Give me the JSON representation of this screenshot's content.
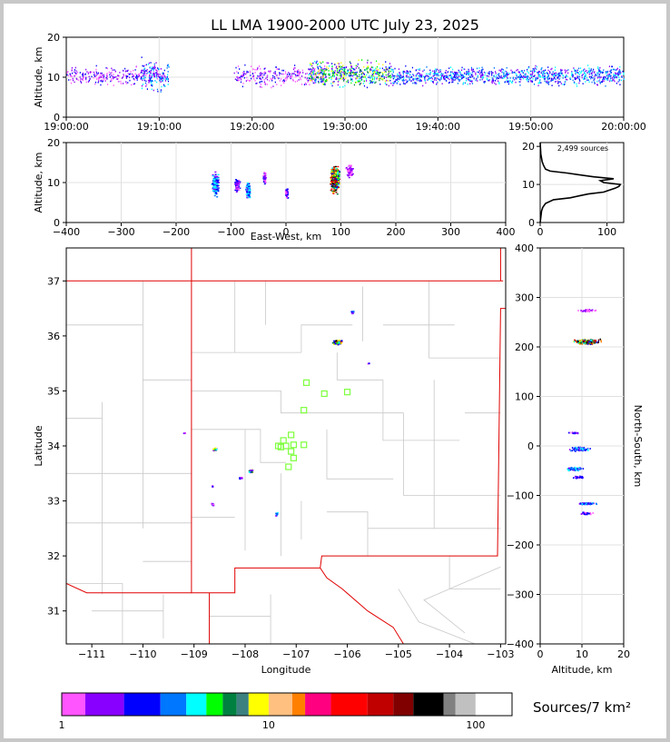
{
  "chart_data": [
    {
      "panel": "altitude-time",
      "type": "scatter",
      "title": "LL LMA 1900-2000 UTC July 23, 2025",
      "ylabel": "Altitude, km",
      "ylim": [
        0,
        20
      ],
      "yticks": [
        "0",
        "10",
        "20"
      ],
      "xticks": [
        "19:00:00",
        "19:10:00",
        "19:20:00",
        "19:30:00",
        "19:40:00",
        "19:50:00",
        "20:00:00"
      ],
      "xlim_minutes": [
        0,
        60
      ],
      "clusters": [
        {
          "t0": 0,
          "t1": 10.5,
          "alt": 10.5,
          "spread": 3,
          "density": 2
        },
        {
          "t0": 8,
          "t1": 11,
          "alt": 10.5,
          "spread": 5,
          "density": 3
        },
        {
          "t0": 18,
          "t1": 28,
          "alt": 10.5,
          "spread": 3.5,
          "density": 2
        },
        {
          "t0": 26,
          "t1": 35,
          "alt": 11,
          "spread": 4,
          "density": 4
        },
        {
          "t0": 35,
          "t1": 60,
          "alt": 10.5,
          "spread": 3,
          "density": 3
        }
      ]
    },
    {
      "panel": "altitude-eastwest",
      "type": "scatter",
      "xlabel": "East-West, km",
      "ylabel": "Altitude, km",
      "xlim": [
        -400,
        400
      ],
      "ylim": [
        0,
        20
      ],
      "xticks": [
        "−400",
        "−300",
        "−200",
        "−100",
        "0",
        "100",
        "200",
        "300",
        "400"
      ],
      "yticks": [
        "0",
        "10",
        "20"
      ],
      "clusters": [
        {
          "x": -130,
          "alt": 9.5,
          "dx": 8,
          "dalt": 4,
          "n": 50,
          "density": 3
        },
        {
          "x": -90,
          "alt": 9.5,
          "dx": 6,
          "dalt": 2,
          "n": 25,
          "density": 2
        },
        {
          "x": -70,
          "alt": 8,
          "dx": 5,
          "dalt": 2.5,
          "n": 40,
          "density": 3
        },
        {
          "x": -40,
          "alt": 11,
          "dx": 3,
          "dalt": 2,
          "n": 15,
          "density": 2
        },
        {
          "x": 0,
          "alt": 7.5,
          "dx": 3,
          "dalt": 1.5,
          "n": 15,
          "density": 2
        },
        {
          "x": 88,
          "alt": 11,
          "dx": 10,
          "dalt": 4,
          "n": 160,
          "density": 5
        },
        {
          "x": 115,
          "alt": 13,
          "dx": 10,
          "dalt": 2,
          "n": 20,
          "density": 1
        }
      ]
    },
    {
      "panel": "altitude-histogram",
      "type": "line",
      "annotation": "2,499 sources",
      "xlim": [
        0,
        125
      ],
      "ylim": [
        0,
        21
      ],
      "xticks": [
        "0",
        "100"
      ],
      "yticks": [
        "0",
        "10",
        "20"
      ],
      "x": [
        0,
        2,
        4,
        8,
        20,
        45,
        58,
        72,
        95,
        112,
        118,
        120,
        95,
        90,
        110,
        80,
        40,
        15,
        8,
        5,
        3,
        1,
        0
      ],
      "y": [
        0,
        3,
        4,
        5,
        6,
        6.5,
        7,
        7.5,
        8,
        9,
        9.5,
        10,
        10.5,
        11,
        11.5,
        12,
        13,
        13.5,
        14,
        15,
        16,
        18,
        21
      ]
    },
    {
      "panel": "plan-view-map",
      "type": "scatter",
      "xlabel": "Longitude",
      "ylabel": "Latitude",
      "xlim": [
        -111.5,
        -102.9
      ],
      "ylim": [
        30.4,
        37.6
      ],
      "xticks": [
        "−111",
        "−110",
        "−109",
        "−108",
        "−107",
        "−106",
        "−105",
        "−104",
        "−103"
      ],
      "yticks": [
        "31",
        "32",
        "33",
        "34",
        "35",
        "36",
        "37"
      ],
      "clusters": [
        {
          "lon": -106.2,
          "lat": 35.9,
          "dx": 0.12,
          "dy": 0.06,
          "n": 60,
          "density": 5
        },
        {
          "lon": -105.9,
          "lat": 36.45,
          "dx": 0.06,
          "dy": 0.05,
          "n": 10,
          "density": 3
        },
        {
          "lon": -105.6,
          "lat": 35.5,
          "dx": 0.03,
          "dy": 0.03,
          "n": 3,
          "density": 2
        },
        {
          "lon": -108.6,
          "lat": 33.95,
          "dx": 0.06,
          "dy": 0.04,
          "n": 20,
          "density": 4
        },
        {
          "lon": -107.9,
          "lat": 33.55,
          "dx": 0.05,
          "dy": 0.04,
          "n": 20,
          "density": 4
        },
        {
          "lon": -108.1,
          "lat": 33.43,
          "dx": 0.04,
          "dy": 0.02,
          "n": 8,
          "density": 2
        },
        {
          "lon": -108.65,
          "lat": 33.28,
          "dx": 0.02,
          "dy": 0.02,
          "n": 4,
          "density": 2
        },
        {
          "lon": -108.65,
          "lat": 32.95,
          "dx": 0.04,
          "dy": 0.03,
          "n": 8,
          "density": 2
        },
        {
          "lon": -107.4,
          "lat": 32.77,
          "dx": 0.03,
          "dy": 0.05,
          "n": 8,
          "density": 3
        },
        {
          "lon": -109.2,
          "lat": 34.25,
          "dx": 0.04,
          "dy": 0.01,
          "n": 3,
          "density": 1
        }
      ],
      "stations": [
        [
          -106.8,
          35.15
        ],
        [
          -106.45,
          34.95
        ],
        [
          -106.0,
          34.98
        ],
        [
          -106.85,
          34.65
        ],
        [
          -107.1,
          34.2
        ],
        [
          -107.25,
          34.1
        ],
        [
          -107.35,
          34.0
        ],
        [
          -107.2,
          34.0
        ],
        [
          -107.05,
          34.02
        ],
        [
          -106.85,
          34.02
        ],
        [
          -107.1,
          33.9
        ],
        [
          -107.05,
          33.78
        ],
        [
          -107.15,
          33.62
        ],
        [
          -107.3,
          33.98
        ]
      ],
      "colors": {
        "state_line": "#e00000",
        "county_line": "#c8c8c8",
        "station": "#7cff3c"
      }
    },
    {
      "panel": "northsouth-altitude",
      "type": "scatter",
      "xlabel": "Altitude, km",
      "ylabel": "North-South, km",
      "xlim": [
        0,
        20
      ],
      "ylim": [
        -400,
        400
      ],
      "xticks": [
        "0",
        "10",
        "20"
      ],
      "yticks": [
        "−400",
        "−300",
        "−200",
        "−100",
        "0",
        "100",
        "200",
        "300",
        "400"
      ],
      "clusters": [
        {
          "alt": 11,
          "ns": 212,
          "dalt": 4,
          "dns": 6,
          "n": 140,
          "density": 5
        },
        {
          "alt": 11,
          "ns": 275,
          "dalt": 3,
          "dns": 3,
          "n": 15,
          "density": 1
        },
        {
          "alt": 8,
          "ns": 28,
          "dalt": 1.5,
          "dns": 2,
          "n": 10,
          "density": 2
        },
        {
          "alt": 9.5,
          "ns": -5,
          "dalt": 3,
          "dns": 5,
          "n": 50,
          "density": 3
        },
        {
          "alt": 8,
          "ns": -45,
          "dalt": 2.5,
          "dns": 4,
          "n": 40,
          "density": 3
        },
        {
          "alt": 9,
          "ns": -62,
          "dalt": 1.5,
          "dns": 3,
          "n": 20,
          "density": 2
        },
        {
          "alt": 11,
          "ns": -115,
          "dalt": 3,
          "dns": 2,
          "n": 40,
          "density": 3
        },
        {
          "alt": 11,
          "ns": -135,
          "dalt": 2,
          "dns": 3,
          "n": 15,
          "density": 2
        }
      ]
    },
    {
      "panel": "colorbar",
      "type": "heatmap",
      "label": "Sources/7 km²",
      "tick_labels": [
        "1",
        "10",
        "100"
      ],
      "colors": [
        "#ff55ff",
        "#8800ff",
        "#0000ff",
        "#0077ff",
        "#00ffff",
        "#00ff00",
        "#008040",
        "#3d8080",
        "#ffff00",
        "#ffc080",
        "#ff8000",
        "#ff0080",
        "#ff0000",
        "#c00000",
        "#800000",
        "#000000",
        "#808080",
        "#c0c0c0",
        "#ffffff"
      ],
      "color_bounds": [
        1,
        1.3,
        2,
        3,
        4,
        5,
        6,
        7,
        8,
        10,
        13,
        15,
        20,
        30,
        40,
        50,
        70,
        80,
        100,
        150
      ]
    }
  ]
}
